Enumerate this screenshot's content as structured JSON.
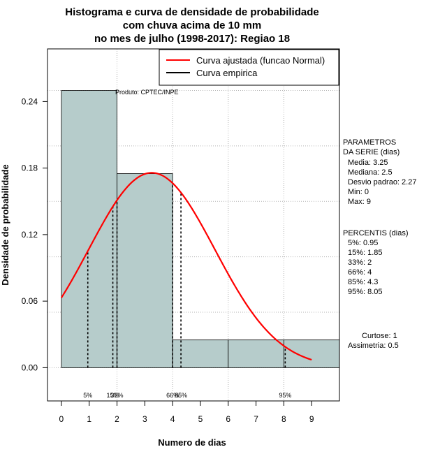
{
  "chart_data": {
    "type": "bar",
    "title": [
      "Histograma e curva de densidade de probabilidade",
      "com chuva acima de 10 mm",
      "no mes de julho (1998-2017): Regiao 18"
    ],
    "xlabel": "Numero de dias",
    "ylabel": "Densidade de probabilidade",
    "xlim": [
      -0.5,
      10.0
    ],
    "ylim": [
      -0.03,
      0.2875
    ],
    "x_ticks": [
      0,
      1,
      2,
      3,
      4,
      5,
      6,
      7,
      8,
      9
    ],
    "y_ticks": [
      0.0,
      0.06,
      0.12,
      0.18,
      0.24
    ],
    "y_tick_labels": [
      "0.00",
      "0.06",
      "0.12",
      "0.18",
      "0.24"
    ],
    "bins": [
      {
        "from": 0,
        "to": 2,
        "density": 0.25
      },
      {
        "from": 2,
        "to": 4,
        "density": 0.175
      },
      {
        "from": 4,
        "to": 6,
        "density": 0.025
      },
      {
        "from": 6,
        "to": 8,
        "density": 0.025
      },
      {
        "from": 8,
        "to": 10,
        "density": 0.025
      }
    ],
    "fitted_curve": {
      "name": "Curva ajustada (funcao Normal)",
      "mean": 3.25,
      "sd": 2.27,
      "x_from": 0,
      "x_to": 9,
      "color": "#ff0000"
    },
    "empirical_curve": {
      "name": "Curva empirica",
      "color": "#000000"
    },
    "percentile_lines": [
      {
        "label": "5%",
        "x": 0.95
      },
      {
        "label": "15%",
        "x": 1.85
      },
      {
        "label": "33%",
        "x": 2
      },
      {
        "label": "66%",
        "x": 4
      },
      {
        "label": "85%",
        "x": 4.3
      },
      {
        "label": "95%",
        "x": 8.05
      }
    ],
    "percentile_tick_labels": [
      {
        "text": "5%",
        "x": 0.95
      },
      {
        "text": "15%",
        "x": 1.85
      },
      {
        "text": "33%",
        "x": 2.0
      },
      {
        "text": "66%",
        "x": 4.0
      },
      {
        "text": "85%",
        "x": 4.3
      },
      {
        "text": "95%",
        "x": 8.05
      }
    ],
    "product_label": "Produto: CPTEC/INPE",
    "parameters": {
      "heading": [
        "PARAMETROS",
        "DA SERIE (dias)"
      ],
      "lines": [
        "Media: 3.25",
        "Mediana: 2.5",
        "Desvio padrao: 2.27",
        "Min: 0",
        "Max: 9"
      ]
    },
    "percentiles_box": {
      "heading": "PERCENTIS (dias)",
      "lines": [
        "5%: 0.95",
        "15%: 1.85",
        "33%: 2",
        "66%: 4",
        "85%: 4.3",
        "95%: 8.05"
      ]
    },
    "shape": [
      "Curtose: 1",
      "Assimetria: 0.5"
    ],
    "colors": {
      "bar_fill": "#b6cccb",
      "grid": "#b3b3b3",
      "fitted": "#ff0000"
    }
  }
}
